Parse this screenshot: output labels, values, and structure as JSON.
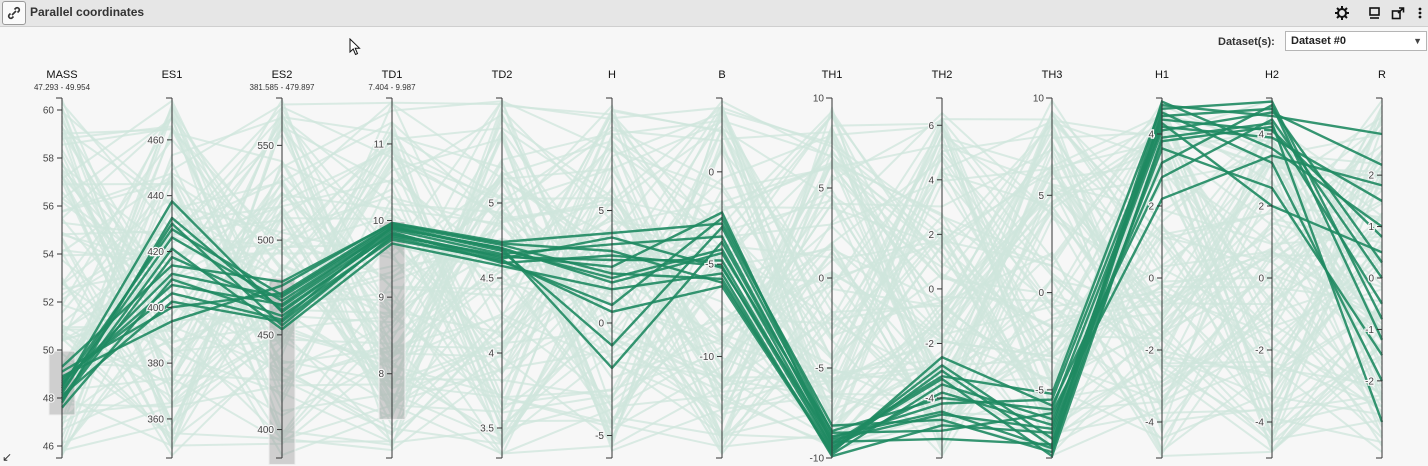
{
  "window": {
    "title": "Parallel coordinates",
    "icons": [
      "chain-link-icon",
      "gear-icon",
      "restore-window-icon",
      "maximize-window-icon",
      "more-icon"
    ]
  },
  "dataset": {
    "label": "Dataset(s):",
    "selected": "Dataset #0"
  },
  "colors": {
    "highlight": "#1f8a62",
    "background_lines": "#cfe6dc",
    "axis": "#333333",
    "brush": "#9e9e9e"
  },
  "chart_data": {
    "type": "parallel_coordinates",
    "axes": [
      {
        "name": "MASS",
        "range": [
          45.5,
          60.5
        ],
        "ticks": [
          46,
          48,
          50,
          52,
          54,
          56,
          58,
          60
        ],
        "brush": "47.293 - 49.954",
        "brush_range": [
          47.293,
          49.954
        ]
      },
      {
        "name": "ES1",
        "range": [
          346,
          475
        ],
        "ticks": [
          360,
          380,
          400,
          420,
          440,
          460
        ],
        "brush": ""
      },
      {
        "name": "ES2",
        "range": [
          385,
          575
        ],
        "ticks": [
          400,
          450,
          500,
          550
        ],
        "brush": "381.585 - 479.897",
        "brush_range": [
          381.585,
          479.897
        ]
      },
      {
        "name": "TD1",
        "range": [
          6.9,
          11.6
        ],
        "ticks": [
          8,
          9,
          10,
          11
        ],
        "brush": "7.404 - 9.987",
        "brush_range": [
          7.404,
          9.987
        ]
      },
      {
        "name": "TD2",
        "range": [
          3.3,
          5.7
        ],
        "ticks": [
          3.5,
          4,
          4.5,
          5
        ],
        "brush": ""
      },
      {
        "name": "H",
        "range": [
          -6,
          10
        ],
        "ticks": [
          -5,
          0,
          5
        ],
        "brush": ""
      },
      {
        "name": "B",
        "range": [
          -15.5,
          4
        ],
        "ticks": [
          -10,
          -5,
          0
        ],
        "brush": ""
      },
      {
        "name": "TH1",
        "range": [
          -10,
          10
        ],
        "ticks": [
          -10,
          -5,
          0,
          5,
          10
        ],
        "brush": ""
      },
      {
        "name": "TH2",
        "range": [
          -6.2,
          7
        ],
        "ticks": [
          -4,
          -2,
          0,
          2,
          4,
          6
        ],
        "brush": ""
      },
      {
        "name": "TH3",
        "range": [
          -8.5,
          10
        ],
        "ticks": [
          -5,
          0,
          5,
          10
        ],
        "brush": ""
      },
      {
        "name": "H1",
        "range": [
          -5,
          5
        ],
        "ticks": [
          -4,
          -2,
          0,
          2,
          4
        ],
        "brush": ""
      },
      {
        "name": "H2",
        "range": [
          -5,
          5
        ],
        "ticks": [
          -4,
          -2,
          0,
          2,
          4
        ],
        "brush": ""
      },
      {
        "name": "R",
        "range": [
          -3.5,
          3.5
        ],
        "ticks": [
          -2,
          -1,
          0,
          1,
          2
        ],
        "brush": ""
      }
    ],
    "highlighted": [
      [
        48.2,
        430.0,
        455.0,
        9.8,
        4.65,
        2.5,
        -2.2,
        -9.2,
        -3.2,
        -5.2,
        4.8,
        4.5,
        2.8
      ],
      [
        48.6,
        412.0,
        470.0,
        9.9,
        4.7,
        1.8,
        -4.4,
        -8.5,
        -4.0,
        -6.0,
        4.2,
        3.9,
        1.5
      ],
      [
        47.9,
        418.0,
        465.0,
        9.85,
        4.6,
        3.0,
        -5.1,
        -9.5,
        -2.8,
        -7.5,
        4.5,
        4.7,
        0.3
      ],
      [
        48.8,
        405.0,
        458.0,
        9.92,
        4.68,
        -1.0,
        -3.0,
        -8.8,
        -4.5,
        -8.0,
        3.8,
        4.2,
        -0.5
      ],
      [
        49.1,
        400.0,
        472.0,
        9.95,
        4.72,
        2.2,
        -5.8,
        -9.8,
        -3.5,
        -6.5,
        3.2,
        4.8,
        -1.2
      ],
      [
        48.3,
        425.0,
        468.0,
        9.88,
        4.66,
        3.5,
        -3.5,
        -9.1,
        -5.5,
        -7.8,
        4.9,
        3.6,
        1.0
      ],
      [
        47.6,
        410.0,
        460.0,
        9.75,
        4.62,
        0.5,
        -6.2,
        -9.7,
        -2.5,
        -5.8,
        2.8,
        4.4,
        0.0
      ],
      [
        48.9,
        395.0,
        476.0,
        9.97,
        4.74,
        4.0,
        -2.8,
        -8.2,
        -4.8,
        -8.2,
        4.6,
        3.2,
        -2.0
      ],
      [
        48.4,
        438.0,
        462.0,
        9.83,
        4.64,
        2.8,
        -4.8,
        -9.4,
        -3.8,
        -6.8,
        4.1,
        4.6,
        2.2
      ],
      [
        48.0,
        421.0,
        453.0,
        9.7,
        4.58,
        1.5,
        -5.5,
        -9.9,
        -5.0,
        -7.2,
        3.6,
        2.5,
        -1.5
      ],
      [
        48.7,
        408.0,
        466.0,
        9.9,
        4.7,
        -2.0,
        -3.8,
        -8.9,
        -4.2,
        -5.5,
        4.4,
        4.1,
        0.8
      ],
      [
        49.3,
        415.0,
        478.0,
        9.96,
        4.73,
        3.2,
        -6.0,
        -9.6,
        -3.0,
        -7.9,
        4.7,
        4.9,
        -0.8
      ],
      [
        48.1,
        402.0,
        457.0,
        9.78,
        4.61,
        0.8,
        -2.5,
        -8.6,
        -5.2,
        -6.2,
        2.2,
        3.4,
        1.8
      ],
      [
        48.5,
        428.0,
        471.0,
        9.93,
        4.69,
        2.0,
        -4.2,
        -9.3,
        -3.3,
        -8.4,
        3.9,
        4.3,
        -2.8
      ],
      [
        47.8,
        432.0,
        463.0,
        9.82,
        4.63,
        3.8,
        -5.2,
        -9.0,
        -4.6,
        -7.0,
        4.3,
        2.0,
        0.5
      ]
    ]
  }
}
